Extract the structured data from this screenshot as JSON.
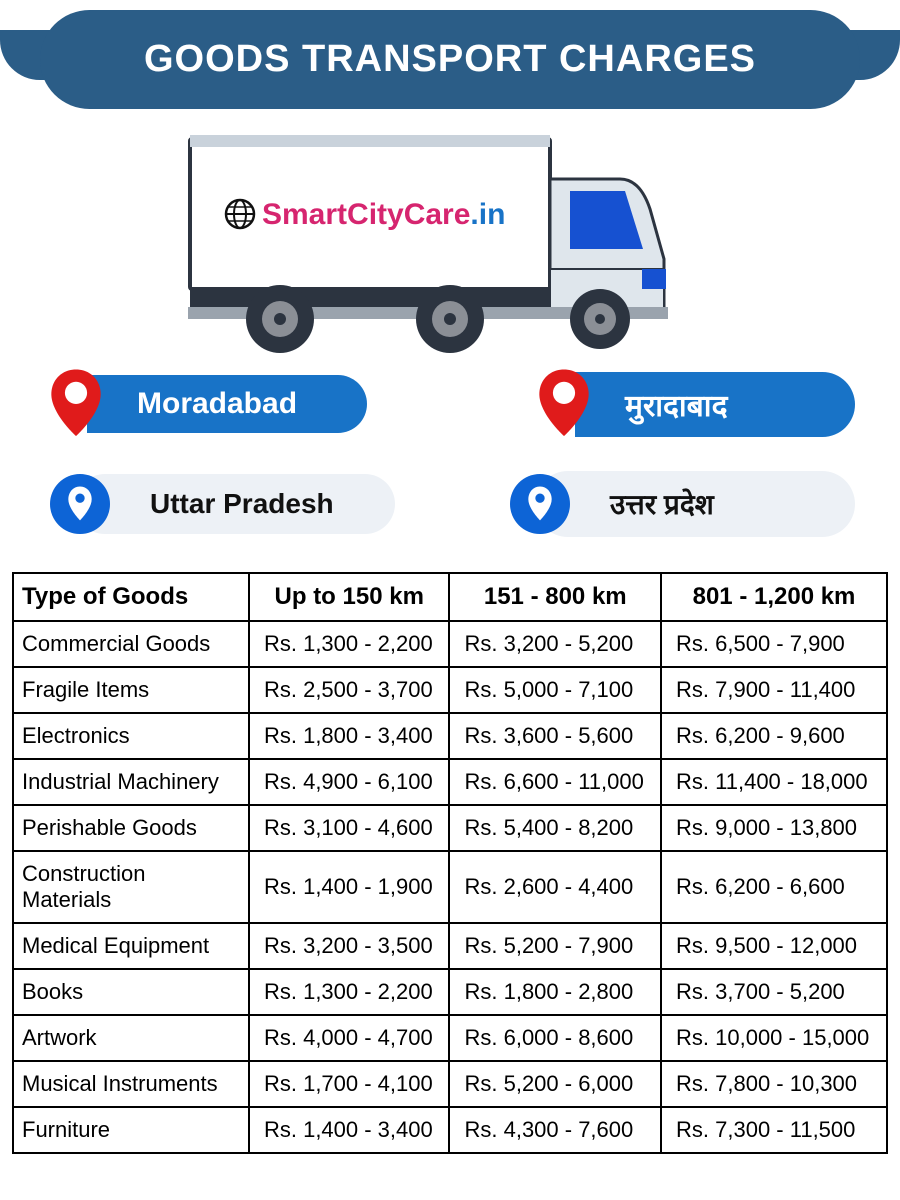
{
  "header": {
    "title": "GOODS TRANSPORT CHARGES"
  },
  "brand": {
    "globe_icon": "globe-icon",
    "name_part1": "SmartCityCare",
    "name_part2": ".in",
    "color1": "#d6256f",
    "color2": "#1873c7"
  },
  "colors": {
    "header_bg": "#2b5d87",
    "chip_blue": "#1873c7",
    "chip_light": "#edf1f6",
    "pin_red": "#e01b1b",
    "circle_blue": "#0d64d6",
    "truck_body": "#dfe6ec",
    "truck_blue": "#1651d1",
    "truck_dark": "#2c3440",
    "wheel_gray": "#555a61"
  },
  "location": {
    "city_en": "Moradabad",
    "city_hi": "मुरादाबाद",
    "state_en": "Uttar Pradesh",
    "state_hi": "उत्तर प्रदेश"
  },
  "table": {
    "columns": [
      "Type of Goods",
      "Up to 150 km",
      "151 - 800 km",
      "801 - 1,200 km"
    ],
    "rows": [
      [
        "Commercial Goods",
        "Rs. 1,300 - 2,200",
        "Rs. 3,200 - 5,200",
        "Rs. 6,500 - 7,900"
      ],
      [
        "Fragile Items",
        "Rs. 2,500 - 3,700",
        "Rs. 5,000 - 7,100",
        "Rs. 7,900 - 11,400"
      ],
      [
        "Electronics",
        "Rs. 1,800 - 3,400",
        "Rs. 3,600 - 5,600",
        "Rs. 6,200 - 9,600"
      ],
      [
        "Industrial Machinery",
        "Rs. 4,900 - 6,100",
        "Rs. 6,600 - 11,000",
        "Rs. 11,400 - 18,000"
      ],
      [
        "Perishable Goods",
        "Rs. 3,100 - 4,600",
        "Rs. 5,400 - 8,200",
        "Rs. 9,000 - 13,800"
      ],
      [
        "Construction Materials",
        "Rs. 1,400 - 1,900",
        "Rs. 2,600 - 4,400",
        "Rs. 6,200 - 6,600"
      ],
      [
        "Medical Equipment",
        "Rs. 3,200 - 3,500",
        "Rs. 5,200 - 7,900",
        "Rs. 9,500 - 12,000"
      ],
      [
        "Books",
        "Rs. 1,300 - 2,200",
        "Rs. 1,800 - 2,800",
        "Rs. 3,700 - 5,200"
      ],
      [
        "Artwork",
        "Rs. 4,000 - 4,700",
        "Rs. 6,000 - 8,600",
        "Rs. 10,000 - 15,000"
      ],
      [
        "Musical Instruments",
        "Rs. 1,700 - 4,100",
        "Rs. 5,200 - 6,000",
        "Rs. 7,800 - 10,300"
      ],
      [
        "Furniture",
        "Rs. 1,400 - 3,400",
        "Rs. 4,300 - 7,600",
        "Rs. 7,300 - 11,500"
      ]
    ]
  }
}
